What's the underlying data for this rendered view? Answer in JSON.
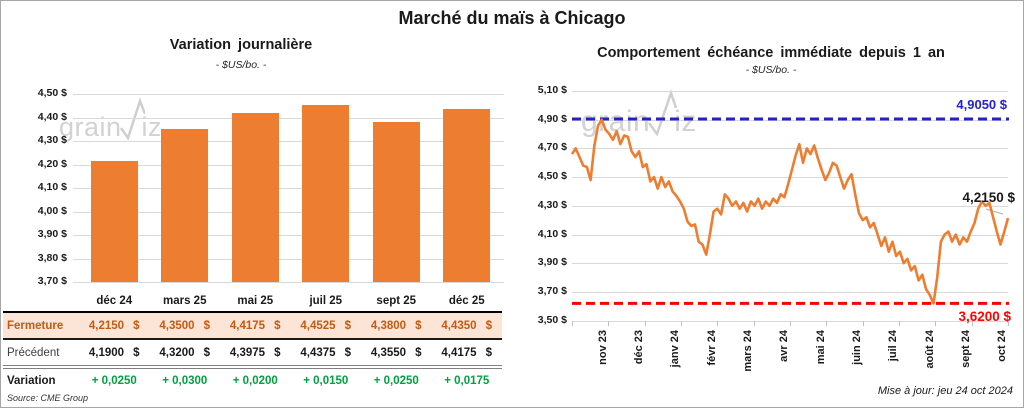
{
  "title": "Marché du maïs à Chicago",
  "currency": "$",
  "watermark": {
    "part1": "grain",
    "part2": "iz"
  },
  "colors": {
    "series_orange": "#ED7D31",
    "resistance_blue": "#2222CC",
    "support_red": "#FF0000",
    "variation_green": "#00A040",
    "highlight_row_bg": "#FCE4D6",
    "highlight_row_text": "#C55A11",
    "gridline": "#D9D9D9",
    "watermark": "#D2D2D2"
  },
  "left_chart": {
    "title": "Variation journalière",
    "subtitle": "- $US/bo. -",
    "source": "Source: CME Group",
    "y_ticks": [
      "4,50 $",
      "4,40 $",
      "4,30 $",
      "4,20 $",
      "4,10 $",
      "4,00 $",
      "3,90 $",
      "3,80 $",
      "3,70 $"
    ]
  },
  "table": {
    "columns": [
      "déc 24",
      "mars 25",
      "mai 25",
      "juil 25",
      "sept 25",
      "déc 25"
    ],
    "rows": [
      {
        "label": "Fermeture",
        "style": "fermeture",
        "currency": true,
        "values": [
          "4,2150",
          "4,3500",
          "4,4175",
          "4,4525",
          "4,3800",
          "4,4350"
        ]
      },
      {
        "label": "Précédent",
        "style": "precedent",
        "currency": true,
        "values": [
          "4,1900",
          "4,3200",
          "4,3975",
          "4,4375",
          "4,3550",
          "4,4175"
        ]
      },
      {
        "label": "Variation",
        "style": "variation",
        "currency": false,
        "values": [
          "+ 0,0250",
          "+ 0,0300",
          "+ 0,0200",
          "+ 0,0150",
          "+ 0,0250",
          "+ 0,0175"
        ]
      }
    ]
  },
  "right_chart": {
    "title": "Comportement échéance immédiate depuis 1 an",
    "subtitle": "- $US/bo. -",
    "updated": "Mise à jour: jeu 24 oct 2024",
    "y_ticks": [
      "5,10 $",
      "4,90 $",
      "4,70 $",
      "4,50 $",
      "4,30 $",
      "4,10 $",
      "3,90 $",
      "3,70 $",
      "3,50 $"
    ],
    "x_ticks": [
      "nov 23",
      "déc 23",
      "janv 24",
      "févr 24",
      "mars 24",
      "avr 24",
      "mai 24",
      "juin 24",
      "juil 24",
      "août 24",
      "sept 24",
      "oct 24"
    ],
    "resistance_label": "4,9050 $",
    "support_label": "3,6200 $",
    "last_label": "4,2150 $"
  },
  "chart_data": [
    {
      "type": "bar",
      "title": "Variation journalière",
      "ylabel": "$US/bo.",
      "categories": [
        "déc 24",
        "mars 25",
        "mai 25",
        "juil 25",
        "sept 25",
        "déc 25"
      ],
      "values": [
        4.215,
        4.35,
        4.4175,
        4.4525,
        4.38,
        4.435
      ],
      "ylim": [
        3.7,
        4.5
      ],
      "grid": true
    },
    {
      "type": "line",
      "title": "Comportement échéance immédiate depuis 1 an",
      "ylabel": "$US/bo.",
      "x_tick_labels": [
        "nov 23",
        "déc 23",
        "janv 24",
        "févr 24",
        "mars 24",
        "avr 24",
        "mai 24",
        "juin 24",
        "juil 24",
        "août 24",
        "sept 24",
        "oct 24"
      ],
      "ylim": [
        3.5,
        5.1
      ],
      "grid": true,
      "reference_lines": [
        {
          "label": "4,9050 $",
          "value": 4.905,
          "color": "#2222CC",
          "style": "dashed"
        },
        {
          "label": "3,6200 $",
          "value": 3.62,
          "color": "#FF0000",
          "style": "dashed"
        }
      ],
      "last_value": 4.215,
      "last_label": "4,2150 $",
      "values": [
        4.66,
        4.7,
        4.64,
        4.58,
        4.57,
        4.48,
        4.72,
        4.86,
        4.9,
        4.83,
        4.8,
        4.76,
        4.82,
        4.73,
        4.79,
        4.78,
        4.68,
        4.64,
        4.68,
        4.57,
        4.59,
        4.47,
        4.5,
        4.42,
        4.5,
        4.43,
        4.47,
        4.4,
        4.37,
        4.33,
        4.28,
        4.19,
        4.16,
        4.17,
        4.05,
        4.03,
        3.96,
        4.1,
        4.26,
        4.28,
        4.24,
        4.38,
        4.35,
        4.3,
        4.33,
        4.28,
        4.32,
        4.26,
        4.33,
        4.3,
        4.35,
        4.28,
        4.33,
        4.3,
        4.35,
        4.32,
        4.38,
        4.36,
        4.45,
        4.55,
        4.65,
        4.73,
        4.6,
        4.7,
        4.66,
        4.72,
        4.63,
        4.55,
        4.48,
        4.53,
        4.6,
        4.58,
        4.5,
        4.42,
        4.48,
        4.52,
        4.38,
        4.25,
        4.2,
        4.22,
        4.15,
        4.18,
        4.1,
        4.02,
        4.08,
        3.98,
        4.05,
        3.95,
        3.98,
        3.9,
        3.93,
        3.85,
        3.88,
        3.78,
        3.82,
        3.72,
        3.68,
        3.62,
        3.8,
        4.05,
        4.1,
        4.12,
        4.05,
        4.1,
        4.03,
        4.08,
        4.05,
        4.12,
        4.18,
        4.28,
        4.33,
        4.3,
        4.32,
        4.22,
        4.12,
        4.03,
        4.12,
        4.215
      ]
    }
  ]
}
